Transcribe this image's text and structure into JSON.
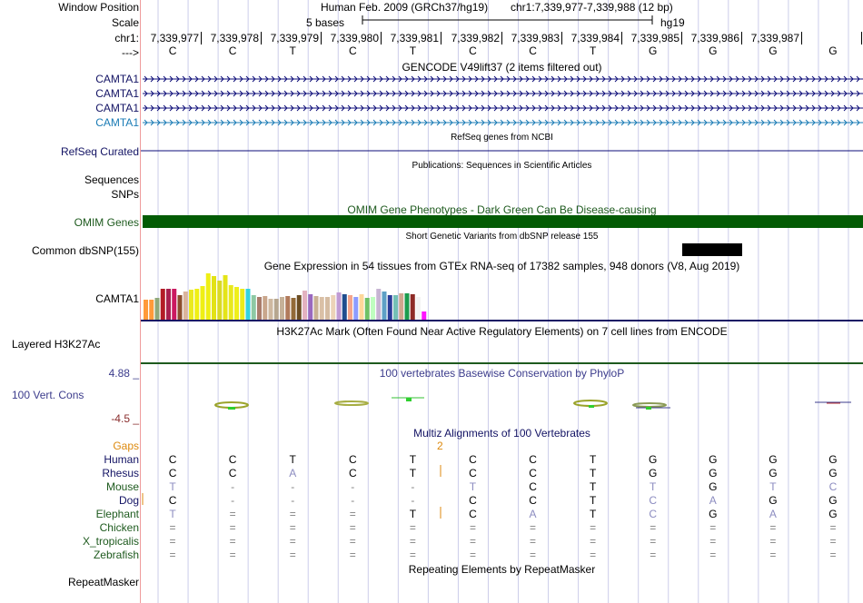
{
  "labels": {
    "window_position": "Window Position",
    "scale": "Scale",
    "chrom": "chr1:",
    "strand_arrow": "--->",
    "refseq": "RefSeq Curated",
    "sequences": "Sequences",
    "snps": "SNPs",
    "omim": "OMIM Genes",
    "common_dbsnp": "Common dbSNP(155)",
    "gtex_gene": "CAMTA1",
    "h3k27ac": "Layered H3K27Ac",
    "cons_max": "4.88 _",
    "cons_name": "100 Vert. Cons",
    "cons_min": "-4.5 _",
    "gaps": "Gaps",
    "repeatmasker": "RepeatMasker"
  },
  "header": {
    "assembly": "Human Feb. 2009 (GRCh37/hg19)",
    "position": "chr1:7,339,977-7,339,988 (12 bp)",
    "scale_text": "5 bases",
    "db": "hg19"
  },
  "coordinates": [
    "7,339,977",
    "7,339,978",
    "7,339,979",
    "7,339,980",
    "7,339,981",
    "7,339,982",
    "7,339,983",
    "7,339,984",
    "7,339,985",
    "7,339,986",
    "7,339,987"
  ],
  "ref_bases": [
    "C",
    "C",
    "T",
    "C",
    "T",
    "C",
    "C",
    "T",
    "G",
    "G",
    "G",
    "G"
  ],
  "gencode": {
    "title": "GENCODE V49lift37 (2 items filtered out)",
    "transcripts": [
      {
        "name": "CAMTA1",
        "color": "#0c0c78"
      },
      {
        "name": "CAMTA1",
        "color": "#0c0c78"
      },
      {
        "name": "CAMTA1",
        "color": "#0c0c78"
      },
      {
        "name": "CAMTA1",
        "color": "#1a7bb5"
      }
    ]
  },
  "track_titles": {
    "refseq": "RefSeq genes from NCBI",
    "publications": "Publications: Sequences in Scientific Articles",
    "omim": "OMIM Gene Phenotypes - Dark Green Can Be Disease-causing",
    "dbsnp": "Short Genetic Variants from dbSNP release 155",
    "gtex": "Gene Expression in 54 tissues from GTEx RNA-seq of 17382 samples, 948 donors (V8, Aug 2019)",
    "h3k27ac": "H3K27Ac Mark (Often Found Near Active Regulatory Elements) on 7 cell lines from ENCODE",
    "phylop": "100 vertebrates Basewise Conservation by PhyloP",
    "multiz": "Multiz Alignments of 100 Vertebrates",
    "repeatmasker": "Repeating Elements by RepeatMasker"
  },
  "gaps_value": "2",
  "gtex_bars": {
    "heights": [
      22,
      22,
      24,
      34,
      34,
      34,
      27,
      31,
      33,
      34,
      37,
      51,
      48,
      43,
      49,
      38,
      36,
      34,
      34,
      27,
      25,
      26,
      23,
      23,
      25,
      26,
      24,
      27,
      32,
      28,
      26,
      25,
      25,
      27,
      30,
      28,
      27,
      25,
      28,
      24,
      25,
      34,
      31,
      27,
      27,
      29,
      29,
      28,
      25,
      9
    ],
    "colors": [
      "#ff9a3a",
      "#ff9a3a",
      "#8fa87a",
      "#b31c26",
      "#a8204f",
      "#cb1a61",
      "#8c4e2e",
      "#dab49c",
      "#eaea1f",
      "#efef14",
      "#efef14",
      "#efef14",
      "#e2e216",
      "#d9d926",
      "#e4e418",
      "#e8e81e",
      "#efef1a",
      "#ebeb1b",
      "#34d2e0",
      "#8ec9a4",
      "#a97c6b",
      "#c9a68c",
      "#ceb8a0",
      "#b6a68f",
      "#c6b198",
      "#b17a5b",
      "#936a38",
      "#6b4d23",
      "#e3b2c0",
      "#9a69bf",
      "#c9b195",
      "#dac0a6",
      "#d5bca2",
      "#ecd3b8",
      "#c09bd4",
      "#1f4d8e",
      "#f4a58c",
      "#8d9cff",
      "#fdd79a",
      "#6ec166",
      "#bfffbf",
      "#c7b5d3",
      "#5ea0c6",
      "#2b3d99",
      "#74c0b6",
      "#cfa68e",
      "#1c9c4e",
      "#8e2b27",
      "#f3f3f3",
      "#ff13ff"
    ]
  },
  "species": [
    {
      "name": "Human",
      "color": "#131364",
      "bases": [
        "C",
        "C",
        "T",
        "C",
        "T",
        "C",
        "C",
        "T",
        "G",
        "G",
        "G",
        "G"
      ]
    },
    {
      "name": "Rhesus",
      "color": "#131364",
      "bases": [
        "C",
        "C",
        "A",
        "C",
        "T",
        "C",
        "C",
        "T",
        "G",
        "G",
        "G",
        "G"
      ]
    },
    {
      "name": "Mouse",
      "color": "#1e5a1e",
      "bases": [
        "T",
        "-",
        "-",
        "-",
        "-",
        "T",
        "C",
        "T",
        "T",
        "G",
        "T",
        "C"
      ]
    },
    {
      "name": "Dog",
      "color": "#131364",
      "bases": [
        "C",
        "-",
        "-",
        "-",
        "-",
        "C",
        "C",
        "T",
        "C",
        "A",
        "G",
        "G"
      ]
    },
    {
      "name": "Elephant",
      "color": "#1e5a1e",
      "bases": [
        "T",
        "=",
        "=",
        "=",
        "T",
        "C",
        "A",
        "T",
        "C",
        "G",
        "A",
        "G"
      ]
    },
    {
      "name": "Chicken",
      "color": "#1e5a1e",
      "bases": [
        "=",
        "=",
        "=",
        "=",
        "=",
        "=",
        "=",
        "=",
        "=",
        "=",
        "=",
        "="
      ]
    },
    {
      "name": "X_tropicalis",
      "color": "#1e5a1e",
      "bases": [
        "=",
        "=",
        "=",
        "=",
        "=",
        "=",
        "=",
        "=",
        "=",
        "=",
        "=",
        "="
      ]
    },
    {
      "name": "Zebrafish",
      "color": "#1e5a1e",
      "bases": [
        "=",
        "=",
        "=",
        "=",
        "=",
        "=",
        "=",
        "=",
        "=",
        "=",
        "=",
        "="
      ]
    }
  ],
  "colors": {
    "omim_bar": "#035b04",
    "label_dark_blue": "#131364",
    "label_green": "#1e5a1e",
    "phylop_blue": "#3c3c8c",
    "cons_min_color": "#8a2d2d",
    "gaps_color": "#dd8a0f",
    "border": "#ef9b9b",
    "grid": "#cccdea"
  }
}
